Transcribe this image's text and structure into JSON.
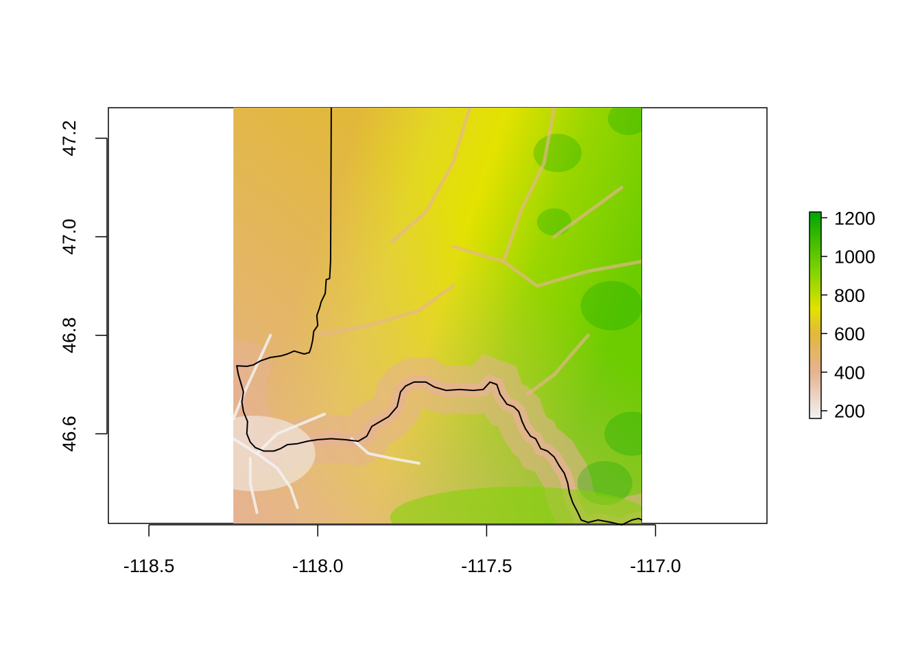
{
  "chart_data": {
    "type": "heatmap",
    "title": "",
    "xlabel": "",
    "ylabel": "",
    "xlim": [
      -118.62,
      -116.67
    ],
    "ylim": [
      46.418,
      47.262
    ],
    "x_ticks": [
      {
        "value": -118.5,
        "label": "-118.5"
      },
      {
        "value": -118.0,
        "label": "-118.0"
      },
      {
        "value": -117.5,
        "label": "-117.5"
      },
      {
        "value": -117.0,
        "label": "-117.0"
      }
    ],
    "y_ticks": [
      {
        "value": 46.6,
        "label": "46.6"
      },
      {
        "value": 46.8,
        "label": "46.8"
      },
      {
        "value": 47.0,
        "label": "47.0"
      },
      {
        "value": 47.2,
        "label": "47.2"
      }
    ],
    "raster_extent": {
      "xmin": -118.25,
      "xmax": -117.04,
      "ymin": 46.418,
      "ymax": 47.262
    },
    "value_range": [
      160,
      1230
    ],
    "legend": {
      "placement": "right",
      "ticks": [
        {
          "value": 200,
          "label": "200"
        },
        {
          "value": 400,
          "label": "400"
        },
        {
          "value": 600,
          "label": "600"
        },
        {
          "value": 800,
          "label": "800"
        },
        {
          "value": 1000,
          "label": "1000"
        },
        {
          "value": 1200,
          "label": "1200"
        }
      ]
    },
    "colors": {
      "low": "#f2f2f2",
      "c400": "#e6b393",
      "c600": "#e2b83a",
      "c700": "#e3e200",
      "c900": "#7fd300",
      "high": "#00a600"
    },
    "boundary_lon_lat": [
      [
        -117.96,
        47.262
      ],
      [
        -117.961,
        47.1
      ],
      [
        -117.962,
        46.95
      ],
      [
        -117.965,
        46.915
      ],
      [
        -117.975,
        46.913
      ],
      [
        -117.978,
        46.885
      ],
      [
        -117.99,
        46.868
      ],
      [
        -117.995,
        46.855
      ],
      [
        -118.003,
        46.84
      ],
      [
        -118.0,
        46.82
      ],
      [
        -118.012,
        46.808
      ],
      [
        -118.015,
        46.79
      ],
      [
        -118.02,
        46.775
      ],
      [
        -118.025,
        46.765
      ],
      [
        -118.04,
        46.762
      ],
      [
        -118.055,
        46.765
      ],
      [
        -118.07,
        46.768
      ],
      [
        -118.09,
        46.762
      ],
      [
        -118.11,
        46.758
      ],
      [
        -118.14,
        46.755
      ],
      [
        -118.17,
        46.748
      ],
      [
        -118.19,
        46.74
      ],
      [
        -118.21,
        46.737
      ],
      [
        -118.24,
        46.738
      ],
      [
        -118.235,
        46.72
      ],
      [
        -118.22,
        46.685
      ],
      [
        -118.225,
        46.665
      ],
      [
        -118.22,
        46.645
      ],
      [
        -118.208,
        46.625
      ],
      [
        -118.21,
        46.6
      ],
      [
        -118.2,
        46.583
      ],
      [
        -118.185,
        46.572
      ],
      [
        -118.16,
        46.565
      ],
      [
        -118.13,
        46.565
      ],
      [
        -118.11,
        46.57
      ],
      [
        -118.09,
        46.578
      ],
      [
        -118.06,
        46.58
      ],
      [
        -118.03,
        46.585
      ],
      [
        -118.0,
        46.588
      ],
      [
        -117.96,
        46.59
      ],
      [
        -117.92,
        46.588
      ],
      [
        -117.88,
        46.585
      ],
      [
        -117.855,
        46.595
      ],
      [
        -117.84,
        46.615
      ],
      [
        -117.815,
        46.625
      ],
      [
        -117.79,
        46.635
      ],
      [
        -117.765,
        46.655
      ],
      [
        -117.755,
        46.685
      ],
      [
        -117.74,
        46.697
      ],
      [
        -117.715,
        46.705
      ],
      [
        -117.68,
        46.705
      ],
      [
        -117.655,
        46.695
      ],
      [
        -117.62,
        46.688
      ],
      [
        -117.58,
        46.69
      ],
      [
        -117.54,
        46.688
      ],
      [
        -117.51,
        46.69
      ],
      [
        -117.49,
        46.705
      ],
      [
        -117.47,
        46.7
      ],
      [
        -117.46,
        46.68
      ],
      [
        -117.44,
        46.66
      ],
      [
        -117.42,
        46.655
      ],
      [
        -117.405,
        46.645
      ],
      [
        -117.395,
        46.625
      ],
      [
        -117.385,
        46.61
      ],
      [
        -117.37,
        46.595
      ],
      [
        -117.355,
        46.59
      ],
      [
        -117.34,
        46.57
      ],
      [
        -117.32,
        46.565
      ],
      [
        -117.3,
        46.553
      ],
      [
        -117.285,
        46.535
      ],
      [
        -117.27,
        46.52
      ],
      [
        -117.26,
        46.5
      ],
      [
        -117.255,
        46.48
      ],
      [
        -117.245,
        46.46
      ],
      [
        -117.23,
        46.44
      ],
      [
        -117.22,
        46.425
      ],
      [
        -117.2,
        46.42
      ],
      [
        -117.17,
        46.425
      ],
      [
        -117.13,
        46.42
      ],
      [
        -117.1,
        46.415
      ],
      [
        -117.07,
        46.425
      ],
      [
        -117.05,
        46.428
      ],
      [
        -117.04,
        46.425
      ]
    ]
  }
}
